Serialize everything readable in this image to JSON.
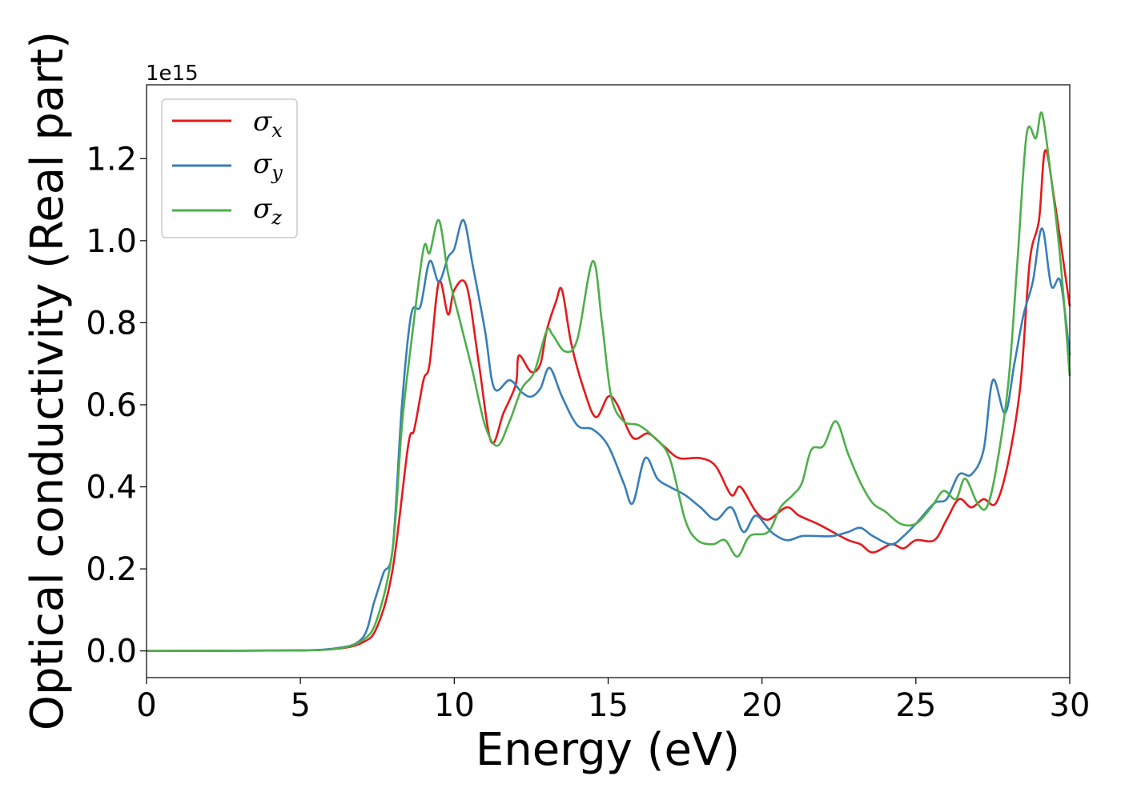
{
  "chart_data": {
    "type": "line",
    "title": "",
    "xlabel": "Energy (eV)",
    "ylabel": "Optical conductivity (Real part)",
    "y_offset_label": "1e15",
    "xlim": [
      0,
      30
    ],
    "ylim": [
      -0.065,
      1.38
    ],
    "x_ticks": [
      0,
      5,
      10,
      15,
      20,
      25,
      30
    ],
    "y_ticks": [
      0.0,
      0.2,
      0.4,
      0.6,
      0.8,
      1.0,
      1.2
    ],
    "x_tick_labels": [
      "0",
      "5",
      "10",
      "15",
      "20",
      "25",
      "30"
    ],
    "y_tick_labels": [
      "0.0",
      "0.2",
      "0.4",
      "0.6",
      "0.8",
      "1.0",
      "1.2"
    ],
    "grid": false,
    "legend_position": "top-left",
    "series": [
      {
        "name": "σx",
        "name_base": "σ",
        "name_sub": "x",
        "color": "#e41a1c",
        "points": [
          [
            0,
            0
          ],
          [
            4,
            0.001
          ],
          [
            6,
            0.004
          ],
          [
            7,
            0.02
          ],
          [
            7.5,
            0.06
          ],
          [
            8,
            0.2
          ],
          [
            8.5,
            0.5
          ],
          [
            8.7,
            0.54
          ],
          [
            9.0,
            0.66
          ],
          [
            9.2,
            0.7
          ],
          [
            9.5,
            0.9
          ],
          [
            9.8,
            0.82
          ],
          [
            10.0,
            0.88
          ],
          [
            10.4,
            0.89
          ],
          [
            10.8,
            0.7
          ],
          [
            11.2,
            0.51
          ],
          [
            11.6,
            0.58
          ],
          [
            12.0,
            0.65
          ],
          [
            12.1,
            0.72
          ],
          [
            12.5,
            0.68
          ],
          [
            12.8,
            0.7
          ],
          [
            13.0,
            0.78
          ],
          [
            13.3,
            0.85
          ],
          [
            13.5,
            0.88
          ],
          [
            13.8,
            0.75
          ],
          [
            14.2,
            0.64
          ],
          [
            14.6,
            0.57
          ],
          [
            15.0,
            0.62
          ],
          [
            15.3,
            0.6
          ],
          [
            15.8,
            0.52
          ],
          [
            16.3,
            0.53
          ],
          [
            16.8,
            0.5
          ],
          [
            17.3,
            0.47
          ],
          [
            18.0,
            0.47
          ],
          [
            18.5,
            0.45
          ],
          [
            19.0,
            0.38
          ],
          [
            19.3,
            0.4
          ],
          [
            19.8,
            0.34
          ],
          [
            20.2,
            0.32
          ],
          [
            20.8,
            0.35
          ],
          [
            21.2,
            0.33
          ],
          [
            21.8,
            0.31
          ],
          [
            22.3,
            0.29
          ],
          [
            22.8,
            0.27
          ],
          [
            23.2,
            0.26
          ],
          [
            23.6,
            0.24
          ],
          [
            24.2,
            0.26
          ],
          [
            24.6,
            0.25
          ],
          [
            25.0,
            0.27
          ],
          [
            25.6,
            0.27
          ],
          [
            26.0,
            0.32
          ],
          [
            26.4,
            0.37
          ],
          [
            26.8,
            0.35
          ],
          [
            27.2,
            0.37
          ],
          [
            27.6,
            0.36
          ],
          [
            28.0,
            0.46
          ],
          [
            28.4,
            0.65
          ],
          [
            28.7,
            0.95
          ],
          [
            29.0,
            1.05
          ],
          [
            29.2,
            1.22
          ],
          [
            29.5,
            1.1
          ],
          [
            30.0,
            0.84
          ]
        ]
      },
      {
        "name": "σy",
        "name_base": "σ",
        "name_sub": "y",
        "color": "#377eb8",
        "points": [
          [
            0,
            0
          ],
          [
            4,
            0.001
          ],
          [
            6,
            0.005
          ],
          [
            7,
            0.03
          ],
          [
            7.4,
            0.12
          ],
          [
            7.7,
            0.19
          ],
          [
            8.0,
            0.25
          ],
          [
            8.3,
            0.6
          ],
          [
            8.6,
            0.82
          ],
          [
            8.9,
            0.84
          ],
          [
            9.2,
            0.95
          ],
          [
            9.5,
            0.9
          ],
          [
            9.8,
            0.96
          ],
          [
            10.0,
            0.98
          ],
          [
            10.3,
            1.05
          ],
          [
            10.6,
            0.94
          ],
          [
            11.0,
            0.78
          ],
          [
            11.3,
            0.64
          ],
          [
            11.8,
            0.66
          ],
          [
            12.2,
            0.63
          ],
          [
            12.5,
            0.62
          ],
          [
            12.8,
            0.64
          ],
          [
            13.1,
            0.69
          ],
          [
            13.5,
            0.62
          ],
          [
            14.0,
            0.55
          ],
          [
            14.5,
            0.54
          ],
          [
            15.0,
            0.5
          ],
          [
            15.5,
            0.41
          ],
          [
            15.8,
            0.36
          ],
          [
            16.2,
            0.47
          ],
          [
            16.6,
            0.42
          ],
          [
            17.0,
            0.4
          ],
          [
            17.5,
            0.38
          ],
          [
            18.0,
            0.35
          ],
          [
            18.5,
            0.32
          ],
          [
            19.0,
            0.35
          ],
          [
            19.4,
            0.29
          ],
          [
            19.8,
            0.33
          ],
          [
            20.3,
            0.29
          ],
          [
            20.8,
            0.27
          ],
          [
            21.3,
            0.28
          ],
          [
            21.8,
            0.28
          ],
          [
            22.3,
            0.28
          ],
          [
            22.8,
            0.29
          ],
          [
            23.2,
            0.3
          ],
          [
            23.6,
            0.28
          ],
          [
            24.2,
            0.26
          ],
          [
            24.6,
            0.28
          ],
          [
            25.0,
            0.31
          ],
          [
            25.6,
            0.36
          ],
          [
            26.0,
            0.37
          ],
          [
            26.4,
            0.43
          ],
          [
            26.8,
            0.43
          ],
          [
            27.2,
            0.49
          ],
          [
            27.5,
            0.66
          ],
          [
            27.9,
            0.58
          ],
          [
            28.2,
            0.7
          ],
          [
            28.5,
            0.82
          ],
          [
            28.8,
            0.9
          ],
          [
            29.1,
            1.03
          ],
          [
            29.4,
            0.89
          ],
          [
            29.7,
            0.9
          ],
          [
            30.0,
            0.72
          ]
        ]
      },
      {
        "name": "σz",
        "name_base": "σ",
        "name_sub": "z",
        "color": "#4daf4a",
        "points": [
          [
            0,
            0
          ],
          [
            4,
            0.001
          ],
          [
            6,
            0.004
          ],
          [
            7,
            0.025
          ],
          [
            7.5,
            0.08
          ],
          [
            8.0,
            0.25
          ],
          [
            8.3,
            0.55
          ],
          [
            8.6,
            0.75
          ],
          [
            9.0,
            0.98
          ],
          [
            9.2,
            0.97
          ],
          [
            9.5,
            1.05
          ],
          [
            9.8,
            0.92
          ],
          [
            10.2,
            0.8
          ],
          [
            10.6,
            0.68
          ],
          [
            11.0,
            0.55
          ],
          [
            11.4,
            0.5
          ],
          [
            11.8,
            0.56
          ],
          [
            12.2,
            0.64
          ],
          [
            12.6,
            0.68
          ],
          [
            13.0,
            0.78
          ],
          [
            13.2,
            0.77
          ],
          [
            13.6,
            0.73
          ],
          [
            14.0,
            0.76
          ],
          [
            14.5,
            0.95
          ],
          [
            14.8,
            0.8
          ],
          [
            15.1,
            0.62
          ],
          [
            15.5,
            0.56
          ],
          [
            16.0,
            0.55
          ],
          [
            16.5,
            0.52
          ],
          [
            17.0,
            0.47
          ],
          [
            17.5,
            0.32
          ],
          [
            17.9,
            0.27
          ],
          [
            18.4,
            0.26
          ],
          [
            18.8,
            0.27
          ],
          [
            19.2,
            0.23
          ],
          [
            19.6,
            0.28
          ],
          [
            20.2,
            0.29
          ],
          [
            20.6,
            0.35
          ],
          [
            21.0,
            0.38
          ],
          [
            21.3,
            0.41
          ],
          [
            21.6,
            0.49
          ],
          [
            22.0,
            0.5
          ],
          [
            22.4,
            0.56
          ],
          [
            22.8,
            0.48
          ],
          [
            23.2,
            0.41
          ],
          [
            23.6,
            0.36
          ],
          [
            24.0,
            0.34
          ],
          [
            24.5,
            0.31
          ],
          [
            25.0,
            0.31
          ],
          [
            25.5,
            0.35
          ],
          [
            25.9,
            0.39
          ],
          [
            26.3,
            0.37
          ],
          [
            26.6,
            0.42
          ],
          [
            27.0,
            0.36
          ],
          [
            27.3,
            0.35
          ],
          [
            27.6,
            0.44
          ],
          [
            28.0,
            0.65
          ],
          [
            28.3,
            0.95
          ],
          [
            28.6,
            1.26
          ],
          [
            28.9,
            1.25
          ],
          [
            29.1,
            1.31
          ],
          [
            29.4,
            1.15
          ],
          [
            29.7,
            0.95
          ],
          [
            30.0,
            0.67
          ]
        ]
      }
    ]
  }
}
